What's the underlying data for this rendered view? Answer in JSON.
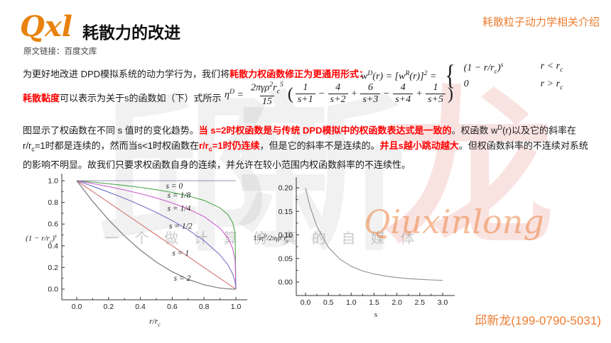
{
  "colors": {
    "accent_orange": "#ed7d31",
    "logo_orange": "#e8820c",
    "red": "#ff0000"
  },
  "header": {
    "logo": "Qxl",
    "title": "耗散力的改进",
    "topic": "耗散粒子动力学相关介绍",
    "source": "原文链接：百度文库"
  },
  "intro": {
    "line1": [
      {
        "t": "为更好地改进 DPD模拟系统的动力学行为，我们将"
      },
      {
        "t": "耗散力权函数修正为更通用形式：",
        "red": true
      }
    ],
    "line2": [
      {
        "t": "耗散黏度",
        "red": true
      },
      {
        "t": "可以表示为关于s的函数如（下）式所示"
      }
    ]
  },
  "formulas": {
    "wd": {
      "lhs": "w^{D}(r) = [w^{R}(r)]^{2} =",
      "cases": [
        {
          "expr": "(1 − r/r_{c})^{s}",
          "cond": "r < r_{c}"
        },
        {
          "expr": "0",
          "cond": "r > r_{c}"
        }
      ]
    },
    "eta": {
      "lhs": "η^{D} =",
      "coef_num": "2πγρ^{2}r_{c}^{5}",
      "coef_den": "15",
      "open": "(",
      "terms": [
        {
          "sign": "",
          "num": "1",
          "den": "s+1"
        },
        {
          "sign": "−",
          "num": "4",
          "den": "s+2"
        },
        {
          "sign": "+",
          "num": "6",
          "den": "s+3"
        },
        {
          "sign": "−",
          "num": "4",
          "den": "s+4"
        },
        {
          "sign": "+",
          "num": "1",
          "den": "s+5"
        }
      ],
      "close": ")"
    }
  },
  "body": [
    {
      "t": "图显示了权函数在不同 s 值时的变化趋势。"
    },
    {
      "t": "当 s=2时权函数是与传统 DPD模拟中的权函数表达式是一致的",
      "red": true
    },
    {
      "t": "。权函数 w"
    },
    {
      "t": "D",
      "sup": true
    },
    {
      "t": "(r)以及它的斜率在r/r"
    },
    {
      "t": "c",
      "sub": true
    },
    {
      "t": "=1时都是连续的，然而当s<1时权函数在"
    },
    {
      "t": "r/r",
      "red": true
    },
    {
      "t": "c",
      "red": true,
      "sub": true
    },
    {
      "t": "=1时仍连续",
      "red": true
    },
    {
      "t": "，但是它的斜率不是连续的。"
    },
    {
      "t": "并且s越小跳动越大",
      "red": true
    },
    {
      "t": "。但权函数斜率的不连续对系统的影响不明显。故我们只要求权函数自身的连续，并允许在较小范围内权函数斜率的不连续性。"
    }
  ],
  "watermark": {
    "big": [
      "邱",
      "新",
      "龙"
    ],
    "tagline": "一 个 做 计 算 仿 真 的 自 媒 体",
    "script": "Qiuxinlong"
  },
  "footer": {
    "contact": "邱新龙(199-0790-5031)"
  },
  "chart_data": [
    {
      "type": "line",
      "title": "",
      "xlabel": "r/r_{c}",
      "ylabel": "(1 − r/r_{c})^{s}",
      "xlim": [
        0,
        1
      ],
      "ylim": [
        0,
        1
      ],
      "grid": false,
      "legend_position": "inline-labels",
      "xticks": [
        0,
        0.2,
        0.4,
        0.6,
        0.8,
        1.0
      ],
      "xtick_labels": [
        "0.0",
        "0.2",
        "0.4",
        "0.6",
        "0.8",
        "1.0"
      ],
      "yticks": [
        0,
        0.2,
        0.4,
        0.6,
        0.8,
        1.0
      ],
      "ytick_labels": [
        "0.0",
        "0.2",
        "0.4",
        "0.6",
        "0.8",
        "1.0"
      ],
      "x": [
        0,
        0.1,
        0.2,
        0.3,
        0.4,
        0.5,
        0.6,
        0.7,
        0.8,
        0.9,
        0.95,
        0.98,
        0.995,
        1
      ],
      "series": [
        {
          "name": "s = 0",
          "color": "#9094b4",
          "values": [
            1,
            1,
            1,
            1,
            1,
            1,
            1,
            1,
            1,
            1,
            1,
            1,
            1,
            1
          ]
        },
        {
          "name": "s = 1/8",
          "color": "#4ba84b",
          "values": [
            1,
            0.987,
            0.972,
            0.956,
            0.938,
            0.917,
            0.892,
            0.86,
            0.818,
            0.75,
            0.688,
            0.613,
            0.516,
            0
          ]
        },
        {
          "name": "s = 1/4",
          "color": "#cc5fcc",
          "values": [
            1,
            0.974,
            0.946,
            0.915,
            0.88,
            0.841,
            0.795,
            0.74,
            0.669,
            0.562,
            0.473,
            0.376,
            0.266,
            0
          ]
        },
        {
          "name": "s = 1/2",
          "color": "#7373c8",
          "values": [
            1,
            0.949,
            0.894,
            0.837,
            0.775,
            0.707,
            0.632,
            0.548,
            0.447,
            0.316,
            0.224,
            0.141,
            0.071,
            0
          ]
        },
        {
          "name": "s = 1",
          "color": "#d47272",
          "values": [
            1,
            0.9,
            0.8,
            0.7,
            0.6,
            0.5,
            0.4,
            0.3,
            0.2,
            0.1,
            0.05,
            0.02,
            0.005,
            0
          ]
        },
        {
          "name": "s = 2",
          "color": "#6f6f6f",
          "values": [
            1,
            0.81,
            0.64,
            0.49,
            0.36,
            0.25,
            0.16,
            0.09,
            0.04,
            0.01,
            0.0025,
            0.0004,
            0,
            0
          ]
        }
      ],
      "labels": [
        {
          "text": "s = 0",
          "x": 0.56,
          "y": 0.955
        },
        {
          "text": "s = 1/8",
          "x": 0.57,
          "y": 0.868
        },
        {
          "text": "s = 1/4",
          "x": 0.57,
          "y": 0.75
        },
        {
          "text": "s = 1/2",
          "x": 0.58,
          "y": 0.586
        },
        {
          "text": "s = 1",
          "x": 0.6,
          "y": 0.335
        },
        {
          "text": "s = 2",
          "x": 0.61,
          "y": 0.103
        }
      ]
    },
    {
      "type": "line",
      "title": "",
      "xlabel": "s",
      "ylabel": "15η^{D}/2πγρ^{2}r_{c}^{5}",
      "xlim": [
        0,
        3
      ],
      "ylim": [
        0,
        0.2
      ],
      "grid": false,
      "legend_position": "none",
      "xticks": [
        0,
        0.5,
        1,
        1.5,
        2,
        2.5,
        3
      ],
      "xtick_labels": [
        "0.0",
        "0.5",
        "1.0",
        "1.5",
        "2.0",
        "2.5",
        "3.0"
      ],
      "yticks": [
        0,
        0.05,
        0.1,
        0.15,
        0.2
      ],
      "ytick_labels": [
        "0.00",
        "0.05",
        "0.10",
        "0.15",
        "0.20"
      ],
      "x": [
        0,
        0.05,
        0.1,
        0.25,
        0.5,
        0.75,
        1,
        1.25,
        1.5,
        1.75,
        2,
        2.25,
        2.5,
        2.75,
        3
      ],
      "series": [
        {
          "name": "15η^D/2πγρ²r_c⁵",
          "color": "#8f8f8f",
          "values": [
            0.2,
            0.179,
            0.16,
            0.118,
            0.0739,
            0.0487,
            0.0333,
            0.0235,
            0.0171,
            0.0126,
            0.0095,
            0.0073,
            0.0057,
            0.0045,
            0.0036
          ]
        }
      ],
      "labels": []
    }
  ]
}
